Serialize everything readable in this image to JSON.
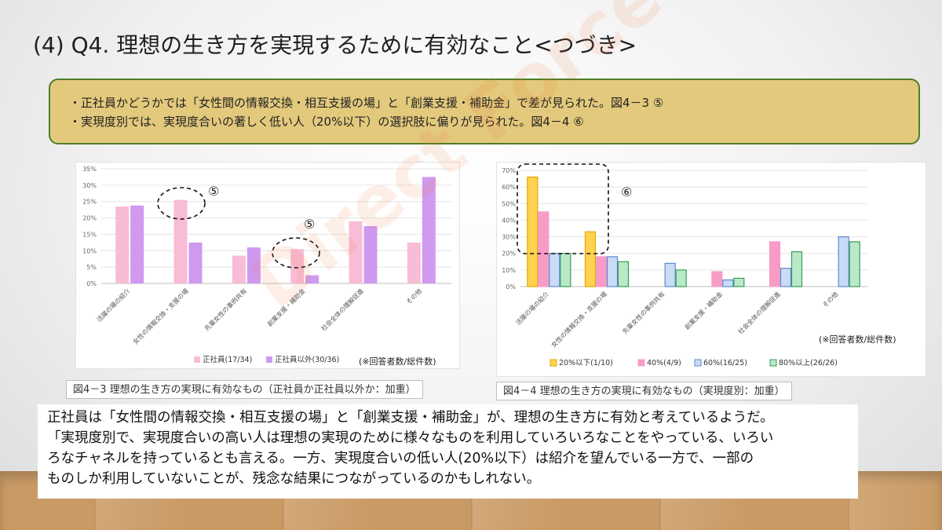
{
  "title": "(4) Q4. 理想の生き方を実現するために有効なこと<つづき>",
  "summary": {
    "line1": "・正社員かどうかでは「女性間の情報交換・相互支援の場」と「創業支援・補助金」で差が見られた。図4－3 ⑤",
    "line2": "・実現度別では、実現度合いの著しく低い人（20%以下）の選択肢に偏りが見られた。図4－4 ⑥"
  },
  "watermark": "Direct Force",
  "chart_data": [
    {
      "type": "bar",
      "categories": [
        "活躍の場の紹介",
        "女性の情報交換・支援の場",
        "先輩女性の事例共有",
        "創業支援・補助金",
        "社会全体の理解促進",
        "その他"
      ],
      "series": [
        {
          "name": "正社員(17/34)",
          "color": "#f8bcd6",
          "values": [
            23.5,
            25.5,
            8.5,
            10.5,
            19,
            12.5
          ]
        },
        {
          "name": "正社員以外(30/36)",
          "color": "#cf99f0",
          "values": [
            23.8,
            12.5,
            11,
            2.5,
            17.5,
            32.5
          ]
        }
      ],
      "yticks": [
        "0%",
        "5%",
        "10%",
        "15%",
        "20%",
        "25%",
        "30%",
        "35%"
      ],
      "ylim": [
        0,
        35
      ],
      "note": "(※回答者数/総件数)",
      "annotations": [
        "⑤",
        "⑤"
      ],
      "legend": "bottom"
    },
    {
      "type": "bar",
      "categories": [
        "活躍の場の紹介",
        "女性の情報交換・支援の場",
        "先輩女性の事例共有",
        "創業支援・補助金",
        "社会全体の理解促進",
        "その他"
      ],
      "series": [
        {
          "name": "20%以下(1/10)",
          "color": "#ffd34f",
          "border": "#e0a800",
          "values": [
            66,
            33,
            0,
            0,
            0,
            0
          ]
        },
        {
          "name": "40%(4/9)",
          "color": "#f79cc6",
          "border": "#f79cc6",
          "values": [
            45,
            18,
            0,
            9,
            27,
            0
          ]
        },
        {
          "name": "60%(16/25)",
          "color": "#c9dcf5",
          "border": "#5a89cf",
          "values": [
            20,
            18,
            14,
            4,
            11,
            30
          ]
        },
        {
          "name": "80%以上(26/26)",
          "color": "#b8e9c9",
          "border": "#3c9c58",
          "values": [
            20,
            15,
            10,
            5,
            21,
            27
          ]
        }
      ],
      "yticks": [
        "0%",
        "10%",
        "20%",
        "30%",
        "40%",
        "50%",
        "60%",
        "70%"
      ],
      "ylim": [
        0,
        70
      ],
      "note": "(※回答者数/総件数)",
      "annotations": [
        "⑥"
      ],
      "legend": "bottom"
    }
  ],
  "captions": {
    "fig3": "図4－3 理想の生き方の実現に有効なもの（正社員か正社員以外か：加重）",
    "fig4": "図4－4 理想の生き方の実現に有効なもの（実現度別：加重）"
  },
  "body": {
    "line1": "正社員は「女性間の情報交換・相互支援の場」と「創業支援・補助金」が、理想の生き方に有効と考えているようだ。",
    "line2": "「実現度別で、実現度合いの高い人は理想の実現のために様々なものを利用していろいろなことをやっている、いろい",
    "line3": "ろなチャネルを持っているとも言える。一方、実現度合いの低い人(20%以下）は紹介を望んでいる一方で、一部の",
    "line4": "ものしか利用していないことが、残念な結果につながっているのかもしれない。"
  }
}
